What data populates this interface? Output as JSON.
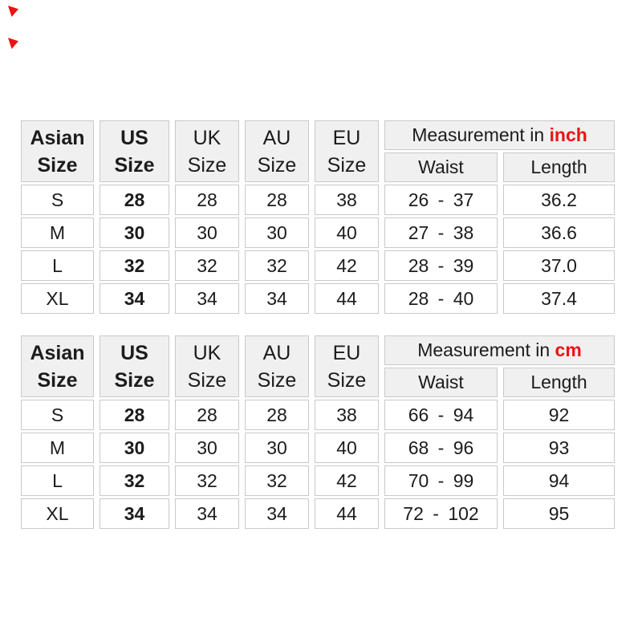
{
  "palette": {
    "red": "#ec1313",
    "header_bg": "#f0f0f0",
    "border": "#c9c9c9",
    "text": "#1c1c1c"
  },
  "shared_headers": {
    "asian_line1": "Asian",
    "asian_line2": "Size",
    "us_line1": "US",
    "us_line2": "Size",
    "uk_line1": "UK",
    "uk_line2": "Size",
    "au_line1": "AU",
    "au_line2": "Size",
    "eu_line1": "EU",
    "eu_line2": "Size",
    "measurement_prefix": "Measurement in",
    "waist_label": "Waist",
    "length_label": "Length"
  },
  "tables": [
    {
      "id": "inch",
      "unit": "inch",
      "rows": [
        {
          "asian": "S",
          "us": "28",
          "uk": "28",
          "au": "28",
          "eu": "38",
          "waist": "26 - 37",
          "length": "36.2"
        },
        {
          "asian": "M",
          "us": "30",
          "uk": "30",
          "au": "30",
          "eu": "40",
          "waist": "27 - 38",
          "length": "36.6"
        },
        {
          "asian": "L",
          "us": "32",
          "uk": "32",
          "au": "32",
          "eu": "42",
          "waist": "28 - 39",
          "length": "37.0"
        },
        {
          "asian": "XL",
          "us": "34",
          "uk": "34",
          "au": "34",
          "eu": "44",
          "waist": "28 - 40",
          "length": "37.4"
        }
      ]
    },
    {
      "id": "cm",
      "unit": "cm",
      "rows": [
        {
          "asian": "S",
          "us": "28",
          "uk": "28",
          "au": "28",
          "eu": "38",
          "waist": "66 - 94",
          "length": "92"
        },
        {
          "asian": "M",
          "us": "30",
          "uk": "30",
          "au": "30",
          "eu": "40",
          "waist": "68 - 96",
          "length": "93"
        },
        {
          "asian": "L",
          "us": "32",
          "uk": "32",
          "au": "32",
          "eu": "42",
          "waist": "70 - 99",
          "length": "94"
        },
        {
          "asian": "XL",
          "us": "34",
          "uk": "34",
          "au": "34",
          "eu": "44",
          "waist": "72 - 102",
          "length": "95"
        }
      ]
    }
  ],
  "chart_data": [
    {
      "type": "table",
      "group_header": "Measurement in inch",
      "columns": [
        "Asian Size",
        "US Size",
        "UK Size",
        "AU Size",
        "EU Size",
        "Waist",
        "Length"
      ],
      "rows": [
        [
          "S",
          "28",
          "28",
          "28",
          "38",
          "26 - 37",
          "36.2"
        ],
        [
          "M",
          "30",
          "30",
          "30",
          "40",
          "27 - 38",
          "36.6"
        ],
        [
          "L",
          "32",
          "32",
          "32",
          "42",
          "28 - 39",
          "37.0"
        ],
        [
          "XL",
          "34",
          "34",
          "34",
          "44",
          "28 - 40",
          "37.4"
        ]
      ]
    },
    {
      "type": "table",
      "group_header": "Measurement in cm",
      "columns": [
        "Asian Size",
        "US Size",
        "UK Size",
        "AU Size",
        "EU Size",
        "Waist",
        "Length"
      ],
      "rows": [
        [
          "S",
          "28",
          "28",
          "28",
          "38",
          "66 - 94",
          "92"
        ],
        [
          "M",
          "30",
          "30",
          "30",
          "40",
          "68 - 96",
          "93"
        ],
        [
          "L",
          "32",
          "32",
          "32",
          "42",
          "70 - 99",
          "94"
        ],
        [
          "XL",
          "34",
          "34",
          "34",
          "44",
          "72 - 102",
          "95"
        ]
      ]
    }
  ]
}
